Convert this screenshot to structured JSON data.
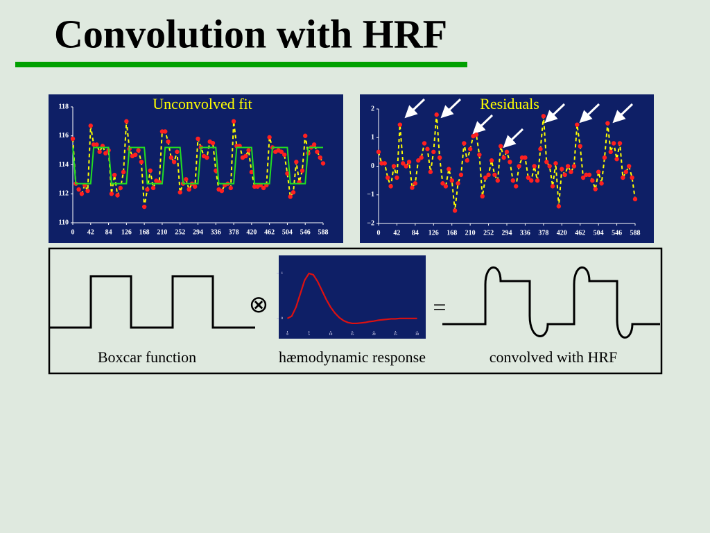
{
  "title": "Convolution with HRF",
  "chart_data": [
    {
      "type": "line",
      "title": "Unconvolved fit",
      "x": [
        0,
        7,
        14,
        21,
        28,
        35,
        42,
        49,
        56,
        63,
        70,
        77,
        84,
        91,
        98,
        105,
        112,
        119,
        126,
        133,
        140,
        147,
        154,
        161,
        168,
        175,
        182,
        189,
        196,
        203,
        210,
        217,
        224,
        231,
        238,
        245,
        252,
        259,
        266,
        273,
        280,
        287,
        294,
        301,
        308,
        315,
        322,
        329,
        336,
        343,
        350,
        357,
        364,
        371,
        378,
        385,
        392,
        399,
        406,
        413,
        420,
        427,
        434,
        441,
        448,
        455,
        462,
        469,
        476,
        483,
        490,
        497,
        504,
        511,
        518,
        525,
        532,
        539,
        546,
        553,
        560,
        567,
        574,
        581,
        588
      ],
      "xlim": [
        0,
        588
      ],
      "xticks": [
        0,
        42,
        84,
        126,
        168,
        210,
        252,
        294,
        336,
        378,
        420,
        462,
        504,
        546,
        588
      ],
      "ylim": [
        110,
        118
      ],
      "yticks": [
        110,
        112,
        114,
        116,
        118
      ],
      "series": [
        {
          "color": "#ffff00",
          "marker_color": "#ff2020",
          "dash": true,
          "values": [
            115.8,
            112.7,
            112.3,
            112.0,
            112.6,
            112.2,
            116.7,
            115.4,
            115.4,
            114.9,
            115.3,
            114.8,
            115.0,
            112.0,
            113.3,
            111.9,
            112.4,
            113.5,
            117.0,
            115.1,
            114.6,
            114.7,
            115.0,
            114.2,
            111.1,
            112.3,
            113.6,
            112.4,
            112.9,
            112.8,
            116.3,
            116.3,
            115.6,
            114.5,
            114.2,
            114.9,
            112.1,
            112.7,
            113.0,
            112.3,
            112.7,
            112.5,
            115.8,
            115.2,
            114.6,
            114.5,
            115.6,
            115.5,
            113.6,
            112.3,
            112.2,
            112.6,
            112.7,
            112.4,
            117.0,
            115.3,
            115.3,
            114.5,
            114.6,
            115.0,
            113.5,
            112.5,
            112.5,
            112.6,
            112.4,
            112.6,
            115.9,
            115.2,
            114.9,
            115.0,
            114.9,
            114.7,
            113.4,
            111.8,
            112.1,
            114.2,
            112.8,
            113.6,
            116.0,
            114.8,
            115.2,
            115.4,
            114.9,
            114.5,
            114.1
          ]
        },
        {
          "color": "#22dd22",
          "values": [
            115.2,
            112.7,
            112.7,
            112.7,
            112.7,
            112.7,
            112.7,
            115.2,
            115.2,
            115.2,
            115.2,
            115.2,
            115.2,
            112.7,
            112.7,
            112.7,
            112.7,
            112.7,
            112.7,
            115.2,
            115.2,
            115.2,
            115.2,
            115.2,
            115.2,
            112.7,
            112.7,
            112.7,
            112.7,
            112.7,
            112.7,
            115.2,
            115.2,
            115.2,
            115.2,
            115.2,
            115.2,
            112.7,
            112.7,
            112.7,
            112.7,
            112.7,
            112.7,
            115.2,
            115.2,
            115.2,
            115.2,
            115.2,
            115.2,
            112.7,
            112.7,
            112.7,
            112.7,
            112.7,
            112.7,
            115.2,
            115.2,
            115.2,
            115.2,
            115.2,
            115.2,
            112.7,
            112.7,
            112.7,
            112.7,
            112.7,
            112.7,
            115.2,
            115.2,
            115.2,
            115.2,
            115.2,
            115.2,
            112.7,
            112.7,
            112.7,
            112.7,
            112.7,
            112.7,
            115.2,
            115.2,
            115.2,
            115.2,
            115.2,
            115.2
          ]
        }
      ]
    },
    {
      "type": "line",
      "title": "Residuals",
      "x": [
        0,
        7,
        14,
        21,
        28,
        35,
        42,
        49,
        56,
        63,
        70,
        77,
        84,
        91,
        98,
        105,
        112,
        119,
        126,
        133,
        140,
        147,
        154,
        161,
        168,
        175,
        182,
        189,
        196,
        203,
        210,
        217,
        224,
        231,
        238,
        245,
        252,
        259,
        266,
        273,
        280,
        287,
        294,
        301,
        308,
        315,
        322,
        329,
        336,
        343,
        350,
        357,
        364,
        371,
        378,
        385,
        392,
        399,
        406,
        413,
        420,
        427,
        434,
        441,
        448,
        455,
        462,
        469,
        476,
        483,
        490,
        497,
        504,
        511,
        518,
        525,
        532,
        539,
        546,
        553,
        560,
        567,
        574,
        581,
        588
      ],
      "xlim": [
        0,
        588
      ],
      "xticks": [
        0,
        42,
        84,
        126,
        168,
        210,
        252,
        294,
        336,
        378,
        420,
        462,
        504,
        546,
        588
      ],
      "ylim": [
        -2,
        2
      ],
      "yticks": [
        {
          "value": -2,
          "label": "−2"
        },
        {
          "value": -1,
          "label": "−1"
        },
        0,
        1,
        2
      ],
      "series": [
        {
          "color": "#ffff00",
          "marker_color": "#ff2020",
          "dash": true,
          "values": [
            0.5,
            0.1,
            0.1,
            -0.4,
            -0.7,
            0.0,
            -0.4,
            1.45,
            0.1,
            0.0,
            0.15,
            -0.75,
            -0.6,
            0.2,
            0.3,
            0.8,
            0.6,
            -0.2,
            0.5,
            1.8,
            0.3,
            -0.6,
            -0.7,
            -0.1,
            -0.5,
            -1.55,
            -0.6,
            -0.3,
            0.8,
            0.2,
            0.6,
            1.05,
            1.1,
            0.4,
            -1.05,
            -0.4,
            -0.3,
            0.2,
            -0.3,
            -0.5,
            0.7,
            0.3,
            0.5,
            0.15,
            -0.5,
            -0.7,
            0.0,
            0.3,
            0.3,
            -0.4,
            -0.5,
            0.0,
            -0.5,
            0.6,
            1.75,
            0.15,
            0.0,
            -0.7,
            0.1,
            -1.4,
            -0.1,
            -0.3,
            0.0,
            -0.2,
            0.0,
            1.45,
            0.7,
            -0.4,
            -0.3,
            -0.3,
            -0.5,
            -0.8,
            -0.2,
            -0.6,
            0.3,
            1.5,
            0.5,
            0.8,
            0.25,
            0.8,
            -0.4,
            -0.2,
            0.0,
            -0.4,
            -1.15
          ]
        }
      ]
    },
    {
      "type": "line",
      "x": [
        0,
        1,
        2,
        3,
        4,
        5,
        6,
        7,
        8,
        9,
        10,
        11,
        12,
        13,
        14,
        15,
        16,
        17,
        18,
        19,
        20,
        21,
        22,
        23,
        24,
        25,
        26,
        27,
        28,
        29,
        30
      ],
      "xlim": [
        -2,
        32
      ],
      "xticks": [
        0,
        5,
        10,
        15,
        20,
        25,
        30
      ],
      "ylim": [
        -0.45,
        1.4
      ],
      "yticks": [
        0,
        1
      ],
      "series": [
        {
          "color": "#dd1111",
          "values": [
            0,
            0.05,
            0.25,
            0.55,
            0.85,
            1.0,
            0.97,
            0.82,
            0.62,
            0.42,
            0.25,
            0.12,
            0.02,
            -0.05,
            -0.09,
            -0.11,
            -0.11,
            -0.1,
            -0.09,
            -0.07,
            -0.06,
            -0.04,
            -0.03,
            -0.02,
            -0.01,
            -0.01,
            0,
            0,
            0,
            0,
            0
          ]
        }
      ]
    }
  ],
  "diagram": {
    "operator": "⊗",
    "equals": "=",
    "labels": [
      "Boxcar function",
      "hæmodynamic response",
      "convolved with HRF"
    ]
  }
}
